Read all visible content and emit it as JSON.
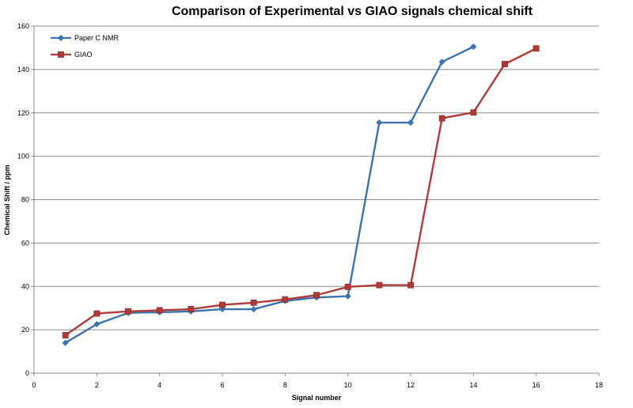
{
  "chart_data": {
    "type": "line",
    "title": "Comparison of Experimental vs GIAO signals chemical shift",
    "xlabel": "Signal number",
    "ylabel": "Chemical Shift  / ppm",
    "xlim": [
      0,
      18
    ],
    "ylim": [
      0,
      160
    ],
    "x_ticks": [
      0,
      2,
      4,
      6,
      8,
      10,
      12,
      14,
      16,
      18
    ],
    "y_ticks": [
      0,
      20,
      40,
      60,
      80,
      100,
      120,
      140,
      160
    ],
    "grid": "horizontal",
    "legend": "top-left",
    "series": [
      {
        "name": "Paper C NMR",
        "color": "#3a73b0",
        "marker": "diamond",
        "x": [
          1,
          2,
          3,
          4,
          5,
          6,
          7,
          8,
          9,
          10,
          11,
          12,
          13,
          14
        ],
        "y": [
          14,
          22.6,
          27.8,
          28.1,
          28.5,
          29.5,
          29.5,
          33.3,
          34.9,
          35.5,
          115.5,
          115.5,
          143.5,
          150.5
        ]
      },
      {
        "name": "GIAO",
        "color": "#b03a36",
        "marker": "square",
        "x": [
          1,
          2,
          3,
          4,
          5,
          6,
          7,
          8,
          9,
          10,
          11,
          12,
          13,
          14,
          15,
          16
        ],
        "y": [
          17.5,
          27.5,
          28.5,
          29,
          29.5,
          31.5,
          32.5,
          34,
          36,
          39.8,
          40.6,
          40.6,
          117.5,
          120.2,
          142.5,
          149.7
        ]
      }
    ]
  }
}
